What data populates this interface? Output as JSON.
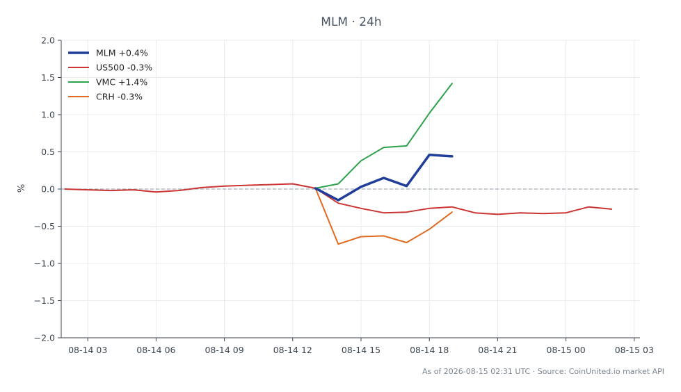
{
  "chart_data": {
    "type": "line",
    "title": "MLM · 24h",
    "xlabel": "",
    "ylabel": "%",
    "ylim": [
      -2.0,
      2.0
    ],
    "yticks": [
      2.0,
      1.5,
      1.0,
      0.5,
      0.0,
      -0.5,
      -1.0,
      -1.5,
      -2.0
    ],
    "ytick_labels": [
      "2.0",
      "1.5",
      "1.0",
      "0.5",
      "0.0",
      "−0.5",
      "−1.0",
      "−1.5",
      "−2.0"
    ],
    "xlim": [
      "2026-08-14 01:50",
      "2026-08-15 03:15"
    ],
    "xticks": [
      "2026-08-14 03:00",
      "2026-08-14 06:00",
      "2026-08-14 09:00",
      "2026-08-14 12:00",
      "2026-08-14 15:00",
      "2026-08-14 18:00",
      "2026-08-14 21:00",
      "2026-08-15 00:00",
      "2026-08-15 03:00"
    ],
    "xtick_labels": [
      "08-14 03",
      "08-14 06",
      "08-14 09",
      "08-14 12",
      "08-14 15",
      "08-14 18",
      "08-14 21",
      "08-15 00",
      "08-15 03"
    ],
    "grid": true,
    "legend_position": "top-left",
    "zero_line": true,
    "series": [
      {
        "name": "MLM +0.4%",
        "color": "#1f3d99",
        "points": [
          [
            "2026-08-14 13:00",
            0.01
          ],
          [
            "2026-08-14 14:00",
            -0.15
          ],
          [
            "2026-08-14 15:00",
            0.03
          ],
          [
            "2026-08-14 16:00",
            0.15
          ],
          [
            "2026-08-14 17:00",
            0.04
          ],
          [
            "2026-08-14 18:00",
            0.46
          ],
          [
            "2026-08-14 19:00",
            0.44
          ]
        ]
      },
      {
        "name": "US500 -0.3%",
        "color": "#cc3333",
        "points": [
          [
            "2026-08-14 02:00",
            0.0
          ],
          [
            "2026-08-14 03:00",
            -0.01
          ],
          [
            "2026-08-14 04:00",
            -0.02
          ],
          [
            "2026-08-14 05:00",
            -0.01
          ],
          [
            "2026-08-14 06:00",
            -0.04
          ],
          [
            "2026-08-14 07:00",
            -0.02
          ],
          [
            "2026-08-14 08:00",
            0.02
          ],
          [
            "2026-08-14 09:00",
            0.04
          ],
          [
            "2026-08-14 10:00",
            0.05
          ],
          [
            "2026-08-14 11:00",
            0.06
          ],
          [
            "2026-08-14 12:00",
            0.07
          ],
          [
            "2026-08-14 13:00",
            0.01
          ],
          [
            "2026-08-14 14:00",
            -0.19
          ],
          [
            "2026-08-14 15:00",
            -0.26
          ],
          [
            "2026-08-14 16:00",
            -0.32
          ],
          [
            "2026-08-14 17:00",
            -0.31
          ],
          [
            "2026-08-14 18:00",
            -0.26
          ],
          [
            "2026-08-14 19:00",
            -0.24
          ],
          [
            "2026-08-14 20:00",
            -0.32
          ],
          [
            "2026-08-14 21:00",
            -0.34
          ],
          [
            "2026-08-14 22:00",
            -0.32
          ],
          [
            "2026-08-14 23:00",
            -0.33
          ],
          [
            "2026-08-15 00:00",
            -0.32
          ],
          [
            "2026-08-15 01:00",
            -0.24
          ],
          [
            "2026-08-15 02:00",
            -0.27
          ]
        ]
      },
      {
        "name": "VMC +1.4%",
        "color": "#2ca24c",
        "points": [
          [
            "2026-08-14 13:00",
            0.01
          ],
          [
            "2026-08-14 14:00",
            0.07
          ],
          [
            "2026-08-14 15:00",
            0.38
          ],
          [
            "2026-08-14 16:00",
            0.56
          ],
          [
            "2026-08-14 17:00",
            0.58
          ],
          [
            "2026-08-14 18:00",
            1.02
          ],
          [
            "2026-08-14 19:00",
            1.42
          ]
        ]
      },
      {
        "name": "CRH -0.3%",
        "color": "#e0691f",
        "points": [
          [
            "2026-08-14 13:00",
            0.01
          ],
          [
            "2026-08-14 14:00",
            -0.74
          ],
          [
            "2026-08-14 15:00",
            -0.64
          ],
          [
            "2026-08-14 16:00",
            -0.63
          ],
          [
            "2026-08-14 17:00",
            -0.72
          ],
          [
            "2026-08-14 18:00",
            -0.54
          ],
          [
            "2026-08-14 19:00",
            -0.31
          ]
        ]
      }
    ],
    "footer": "As of 2026-08-15 02:31 UTC · Source: CoinUnited.io market API"
  }
}
